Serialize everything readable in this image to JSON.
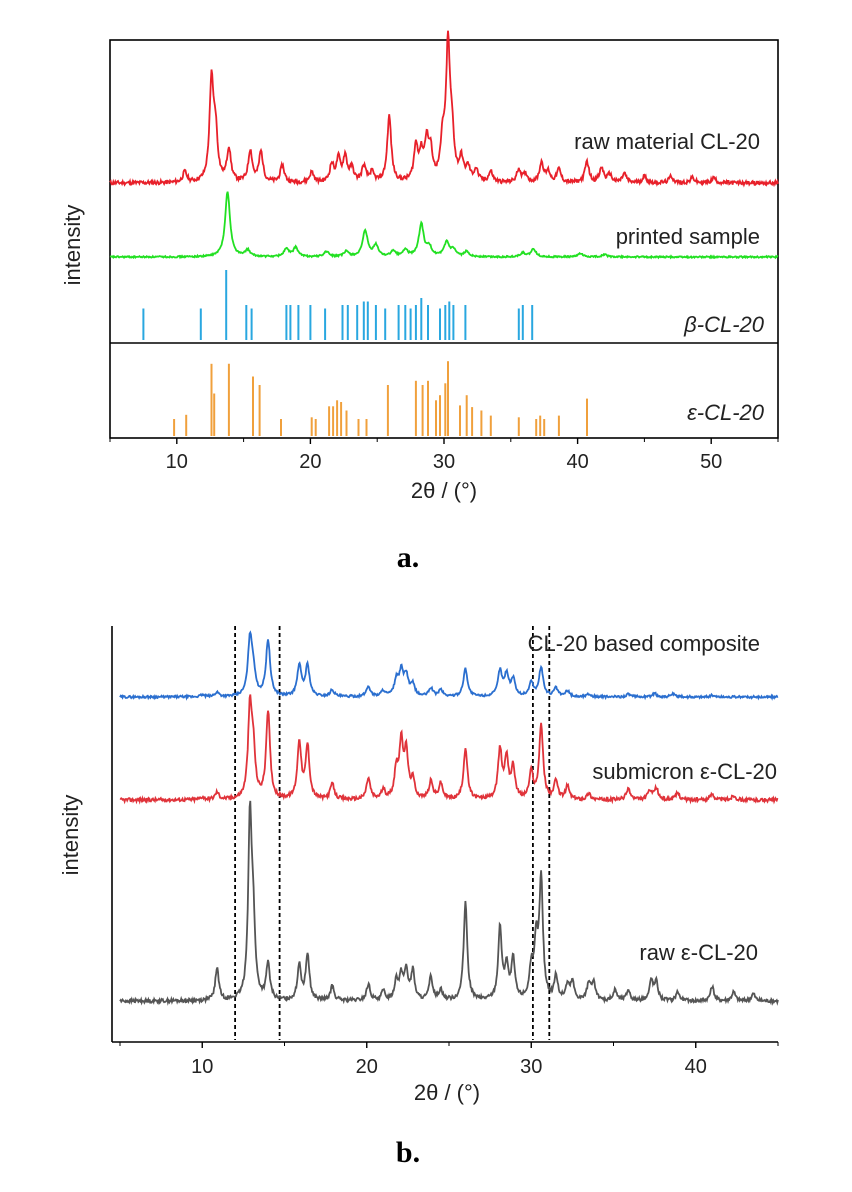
{
  "chart_data": [
    {
      "type": "line",
      "panel_label": "a.",
      "xlabel": "2θ / (°)",
      "ylabel": "intensity",
      "xlim": [
        5,
        55
      ],
      "xticks": [
        10,
        20,
        30,
        40,
        50
      ],
      "series": [
        {
          "name": "raw material CL-20",
          "color": "#e8202a",
          "baseline_jitter": 0.015,
          "width": 0.18,
          "peaks": [
            [
              10.6,
              0.08
            ],
            [
              12.6,
              0.75
            ],
            [
              12.9,
              0.35
            ],
            [
              13.9,
              0.25
            ],
            [
              15.5,
              0.24
            ],
            [
              16.3,
              0.23
            ],
            [
              17.9,
              0.13
            ],
            [
              20.1,
              0.08
            ],
            [
              21.6,
              0.13
            ],
            [
              22.1,
              0.17
            ],
            [
              22.6,
              0.19
            ],
            [
              23.1,
              0.1
            ],
            [
              24.0,
              0.12
            ],
            [
              24.6,
              0.07
            ],
            [
              25.9,
              0.5
            ],
            [
              27.9,
              0.26
            ],
            [
              28.3,
              0.18
            ],
            [
              28.7,
              0.28
            ],
            [
              29.0,
              0.2
            ],
            [
              29.9,
              0.28
            ],
            [
              30.3,
              1.0
            ],
            [
              30.6,
              0.3
            ],
            [
              31.3,
              0.16
            ],
            [
              31.8,
              0.1
            ],
            [
              32.4,
              0.09
            ],
            [
              33.5,
              0.08
            ],
            [
              35.6,
              0.1
            ],
            [
              36.1,
              0.06
            ],
            [
              37.3,
              0.15
            ],
            [
              37.8,
              0.08
            ],
            [
              38.6,
              0.1
            ],
            [
              40.7,
              0.16
            ],
            [
              41.8,
              0.11
            ],
            [
              42.4,
              0.06
            ],
            [
              43.5,
              0.07
            ],
            [
              45.0,
              0.05
            ],
            [
              47.0,
              0.05
            ],
            [
              48.6,
              0.04
            ],
            [
              50.2,
              0.04
            ]
          ]
        },
        {
          "name": "printed sample",
          "color": "#22e022",
          "baseline_jitter": 0.012,
          "width": 0.22,
          "peaks": [
            [
              13.8,
              1.0
            ],
            [
              15.3,
              0.1
            ],
            [
              18.2,
              0.12
            ],
            [
              18.9,
              0.14
            ],
            [
              21.2,
              0.08
            ],
            [
              22.7,
              0.08
            ],
            [
              24.1,
              0.4
            ],
            [
              24.9,
              0.17
            ],
            [
              26.2,
              0.08
            ],
            [
              27.1,
              0.1
            ],
            [
              28.3,
              0.5
            ],
            [
              28.9,
              0.14
            ],
            [
              30.2,
              0.22
            ],
            [
              30.7,
              0.1
            ],
            [
              31.7,
              0.08
            ],
            [
              35.9,
              0.06
            ],
            [
              36.7,
              0.12
            ],
            [
              40.2,
              0.05
            ],
            [
              42.0,
              0.04
            ]
          ]
        }
      ],
      "reference_lines": [
        {
          "name": "β-CL-20",
          "color": "#29a7e0",
          "x": [
            7.5,
            11.8,
            13.7,
            15.2,
            15.6,
            18.2,
            18.5,
            19.1,
            20.0,
            21.1,
            22.4,
            22.8,
            23.5,
            24.0,
            24.3,
            24.9,
            25.6,
            26.6,
            27.1,
            27.5,
            27.9,
            28.3,
            28.8,
            29.7,
            30.1,
            30.4,
            30.7,
            31.6,
            35.6,
            35.9,
            36.6
          ],
          "h": [
            0.45,
            0.45,
            1.0,
            0.5,
            0.45,
            0.5,
            0.5,
            0.5,
            0.5,
            0.45,
            0.5,
            0.5,
            0.5,
            0.55,
            0.55,
            0.5,
            0.45,
            0.5,
            0.5,
            0.45,
            0.5,
            0.6,
            0.5,
            0.45,
            0.5,
            0.55,
            0.5,
            0.5,
            0.45,
            0.5,
            0.5
          ]
        },
        {
          "name": "ε-CL-20",
          "color": "#f0a03c",
          "x": [
            9.8,
            10.7,
            12.6,
            12.8,
            13.9,
            15.7,
            16.2,
            17.8,
            20.1,
            20.4,
            21.4,
            21.7,
            22.0,
            22.3,
            22.7,
            23.6,
            24.2,
            25.8,
            27.9,
            28.4,
            28.8,
            29.4,
            29.7,
            30.1,
            30.3,
            31.2,
            31.7,
            32.1,
            32.8,
            33.5,
            35.6,
            36.9,
            37.2,
            37.5,
            38.6,
            40.7
          ],
          "h": [
            0.2,
            0.25,
            0.85,
            0.5,
            0.85,
            0.7,
            0.6,
            0.2,
            0.22,
            0.2,
            0.35,
            0.35,
            0.42,
            0.4,
            0.3,
            0.2,
            0.2,
            0.6,
            0.65,
            0.6,
            0.65,
            0.42,
            0.48,
            0.62,
            0.88,
            0.36,
            0.48,
            0.34,
            0.3,
            0.24,
            0.22,
            0.2,
            0.24,
            0.2,
            0.24,
            0.44
          ]
        }
      ]
    },
    {
      "type": "line",
      "panel_label": "b.",
      "xlabel": "2θ / (°)",
      "ylabel": "intensity",
      "xlim": [
        5,
        45
      ],
      "xticks": [
        10,
        20,
        30,
        40
      ],
      "dashed_lines_x": [
        12.0,
        14.7,
        30.1,
        31.1
      ],
      "series": [
        {
          "name": "CL-20 based composite",
          "color": "#2b6fcf",
          "baseline_jitter": 0.02,
          "width": 0.15,
          "peaks": [
            [
              10.0,
              0.03
            ],
            [
              10.9,
              0.08
            ],
            [
              12.9,
              1.0
            ],
            [
              13.1,
              0.4
            ],
            [
              14.0,
              1.0
            ],
            [
              15.9,
              0.55
            ],
            [
              16.4,
              0.55
            ],
            [
              17.9,
              0.12
            ],
            [
              20.1,
              0.18
            ],
            [
              21.0,
              0.1
            ],
            [
              21.8,
              0.28
            ],
            [
              22.1,
              0.42
            ],
            [
              22.4,
              0.35
            ],
            [
              22.8,
              0.2
            ],
            [
              23.9,
              0.15
            ],
            [
              24.5,
              0.12
            ],
            [
              26.0,
              0.5
            ],
            [
              28.1,
              0.45
            ],
            [
              28.5,
              0.38
            ],
            [
              28.9,
              0.3
            ],
            [
              30.0,
              0.25
            ],
            [
              30.6,
              0.52
            ],
            [
              31.5,
              0.15
            ],
            [
              32.2,
              0.1
            ],
            [
              33.5,
              0.05
            ],
            [
              35.9,
              0.05
            ],
            [
              37.5,
              0.06
            ],
            [
              38.6,
              0.05
            ],
            [
              41.0,
              0.03
            ]
          ]
        },
        {
          "name": "submicron ε-CL-20",
          "color": "#e0333a",
          "baseline_jitter": 0.02,
          "width": 0.14,
          "peaks": [
            [
              10.0,
              0.03
            ],
            [
              10.9,
              0.08
            ],
            [
              12.9,
              1.0
            ],
            [
              13.1,
              0.5
            ],
            [
              14.0,
              1.0
            ],
            [
              15.9,
              0.65
            ],
            [
              16.4,
              0.6
            ],
            [
              17.9,
              0.18
            ],
            [
              20.1,
              0.24
            ],
            [
              21.0,
              0.1
            ],
            [
              21.8,
              0.32
            ],
            [
              22.1,
              0.6
            ],
            [
              22.4,
              0.5
            ],
            [
              22.8,
              0.2
            ],
            [
              23.9,
              0.2
            ],
            [
              24.5,
              0.18
            ],
            [
              26.0,
              0.58
            ],
            [
              28.1,
              0.55
            ],
            [
              28.5,
              0.45
            ],
            [
              28.9,
              0.35
            ],
            [
              30.0,
              0.3
            ],
            [
              30.6,
              0.85
            ],
            [
              31.5,
              0.2
            ],
            [
              32.2,
              0.15
            ],
            [
              33.5,
              0.07
            ],
            [
              35.9,
              0.13
            ],
            [
              37.2,
              0.1
            ],
            [
              37.6,
              0.13
            ],
            [
              38.9,
              0.08
            ],
            [
              41.0,
              0.07
            ],
            [
              42.3,
              0.05
            ]
          ]
        },
        {
          "name": "raw ε-CL-20",
          "color": "#555555",
          "baseline_jitter": 0.01,
          "width": 0.13,
          "peaks": [
            [
              10.9,
              0.18
            ],
            [
              12.9,
              1.0
            ],
            [
              13.1,
              0.38
            ],
            [
              14.0,
              0.2
            ],
            [
              15.9,
              0.2
            ],
            [
              16.4,
              0.26
            ],
            [
              17.9,
              0.08
            ],
            [
              20.1,
              0.09
            ],
            [
              21.0,
              0.05
            ],
            [
              21.8,
              0.11
            ],
            [
              22.1,
              0.13
            ],
            [
              22.4,
              0.16
            ],
            [
              22.8,
              0.16
            ],
            [
              23.9,
              0.13
            ],
            [
              24.5,
              0.06
            ],
            [
              26.0,
              0.54
            ],
            [
              28.1,
              0.4
            ],
            [
              28.5,
              0.18
            ],
            [
              28.9,
              0.22
            ],
            [
              30.0,
              0.17
            ],
            [
              30.3,
              0.3
            ],
            [
              30.6,
              0.66
            ],
            [
              31.5,
              0.13
            ],
            [
              32.2,
              0.08
            ],
            [
              32.5,
              0.1
            ],
            [
              33.5,
              0.1
            ],
            [
              33.8,
              0.09
            ],
            [
              35.1,
              0.06
            ],
            [
              35.9,
              0.06
            ],
            [
              37.3,
              0.11
            ],
            [
              37.6,
              0.1
            ],
            [
              38.9,
              0.05
            ],
            [
              41.0,
              0.08
            ],
            [
              42.3,
              0.05
            ],
            [
              43.5,
              0.04
            ]
          ]
        }
      ]
    }
  ]
}
